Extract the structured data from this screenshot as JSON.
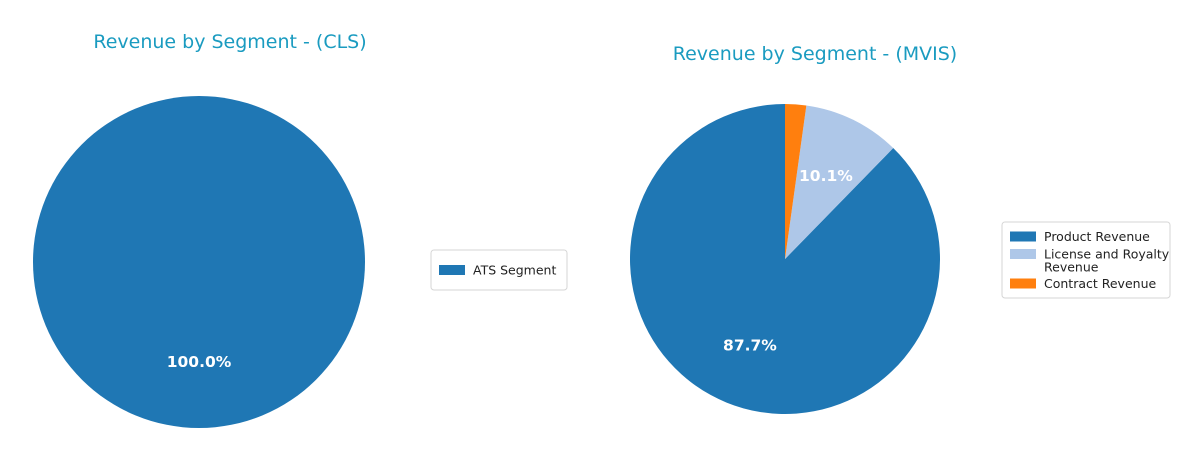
{
  "chart_data": [
    {
      "type": "pie",
      "title": "Revenue by Segment - (CLS)",
      "slices": [
        {
          "name": "ATS Segment",
          "value": 100.0,
          "label": "100.0%",
          "color": "#1f77b4"
        }
      ],
      "legend": {
        "placement": "right",
        "entries": [
          "ATS Segment"
        ]
      }
    },
    {
      "type": "pie",
      "title": "Revenue by Segment - (MVIS)",
      "slices": [
        {
          "name": "Product Revenue",
          "value": 87.7,
          "label": "87.7%",
          "color": "#1f77b4"
        },
        {
          "name": "License and Royalty Revenue",
          "value": 10.1,
          "label": "10.1%",
          "color": "#aec7e8"
        },
        {
          "name": "Contract Revenue",
          "value": 2.2,
          "label": "",
          "color": "#ff7f0e"
        }
      ],
      "legend": {
        "placement": "right",
        "entries": [
          "Product Revenue",
          "License and Royalty\nRevenue",
          "Contract Revenue"
        ]
      }
    }
  ]
}
